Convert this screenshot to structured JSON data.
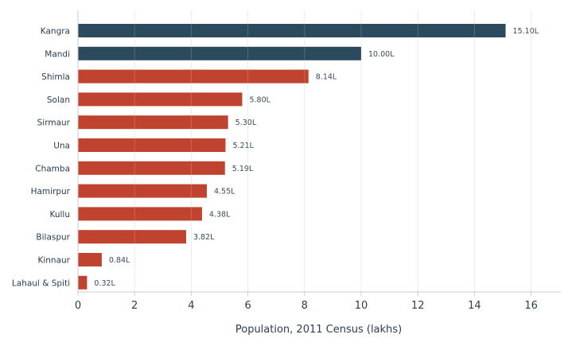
{
  "chart_data": {
    "type": "bar",
    "orientation": "horizontal",
    "categories": [
      "Kangra",
      "Mandi",
      "Shimla",
      "Solan",
      "Sirmaur",
      "Una",
      "Chamba",
      "Hamirpur",
      "Kullu",
      "Bilaspur",
      "Kinnaur",
      "Lahaul & Spiti"
    ],
    "values": [
      15.1,
      10.0,
      8.14,
      5.8,
      5.3,
      5.21,
      5.19,
      4.55,
      4.38,
      3.82,
      0.84,
      0.32
    ],
    "value_labels": [
      "15.10L",
      "10.00L",
      "8.14L",
      "5.80L",
      "5.30L",
      "5.21L",
      "5.19L",
      "4.55L",
      "4.38L",
      "3.82L",
      "0.84L",
      "0.32L"
    ],
    "bar_colors": [
      "#2c4a5e",
      "#2c4a5e",
      "#c0432f",
      "#c0432f",
      "#c0432f",
      "#c0432f",
      "#c0432f",
      "#c0432f",
      "#c0432f",
      "#c0432f",
      "#c0432f",
      "#c0432f"
    ],
    "title": "",
    "xlabel": "Population, 2011 Census (lakhs)",
    "ylabel": "",
    "xlim": [
      0,
      17
    ],
    "xticks": [
      0,
      2,
      4,
      6,
      8,
      10,
      12,
      14,
      16
    ],
    "grid": "vertical",
    "legend": "none"
  }
}
